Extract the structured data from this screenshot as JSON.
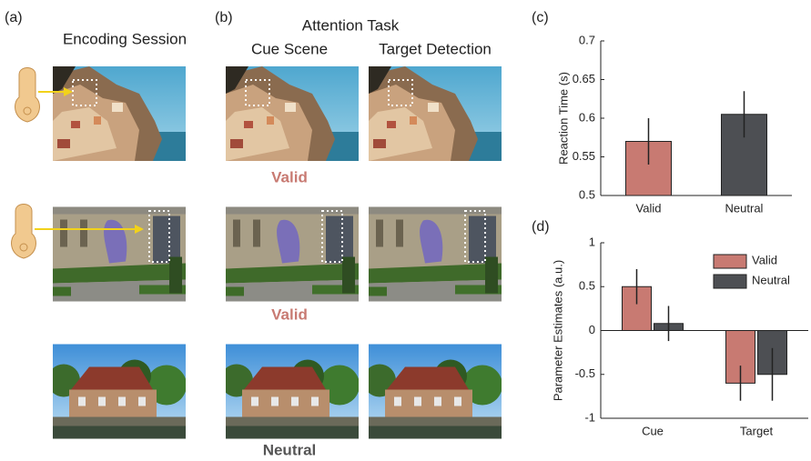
{
  "panels": [
    "(a)",
    "(b)",
    "(c)",
    "(d)"
  ],
  "encoding_title": "Encoding Session",
  "attention_title": "Attention Task",
  "cue_title": "Cue Scene",
  "target_title": "Target Detection",
  "conditions": [
    "Valid",
    "Valid",
    "Neutral"
  ],
  "chart_data": [
    {
      "type": "bar",
      "y_label": "Reaction Time (s)",
      "categories": [
        "Valid",
        "Neutral"
      ],
      "series": [
        {
          "values": [
            0.57,
            0.605
          ],
          "errors": [
            0.03,
            0.03
          ],
          "colors": [
            "#c87a72",
            "#4d4f53"
          ]
        }
      ],
      "ylim": [
        0.5,
        0.7
      ],
      "yticks": [
        0.5,
        0.55,
        0.6,
        0.65,
        0.7
      ],
      "legend": false
    },
    {
      "type": "bar",
      "y_label": "Parameter Estimates (a.u.)",
      "categories": [
        "Cue",
        "Target"
      ],
      "series": [
        {
          "name": "Valid",
          "color": "#c87a72",
          "values": [
            0.5,
            -0.6
          ],
          "errors": [
            0.2,
            0.2
          ]
        },
        {
          "name": "Neutral",
          "color": "#4d4f53",
          "values": [
            0.08,
            -0.5
          ],
          "errors": [
            0.2,
            0.3
          ]
        }
      ],
      "ylim": [
        -1,
        1
      ],
      "yticks": [
        -1,
        -0.5,
        0,
        0.5,
        1
      ],
      "zero_line": true,
      "legend": "upper right"
    }
  ]
}
